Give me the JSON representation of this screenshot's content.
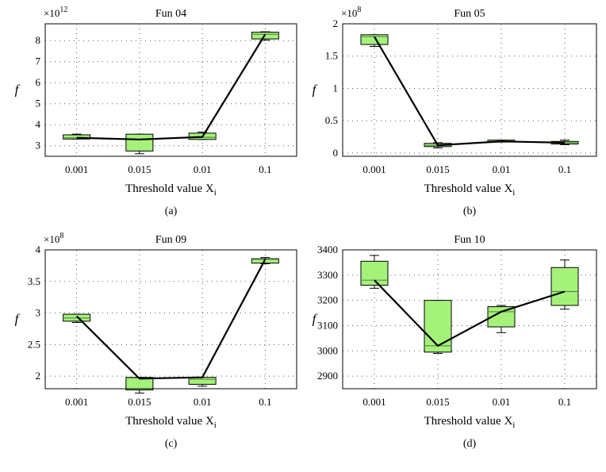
{
  "chart_data": [
    {
      "type": "box",
      "panel": "a",
      "title": "Fun 04",
      "xlabel": "Threshold value X",
      "xlabel_sub": "i",
      "ylabel": "f",
      "multiplier": "×10",
      "multiplier_exp": "12",
      "caption": "(a)",
      "categories": [
        "0.001",
        "0.015",
        "0.01",
        "0.1"
      ],
      "ylim": [
        2.5,
        8.8
      ],
      "yticks": [
        3,
        4,
        5,
        6,
        7,
        8
      ],
      "ytick_labels": [
        "3",
        "4",
        "5",
        "6",
        "7",
        "8"
      ],
      "boxes": [
        {
          "min": 3.32,
          "q1": 3.32,
          "median": 3.38,
          "q3": 3.52,
          "max": 3.55
        },
        {
          "min": 2.62,
          "q1": 2.75,
          "median": 3.3,
          "q3": 3.55,
          "max": 3.55
        },
        {
          "min": 3.3,
          "q1": 3.3,
          "median": 3.4,
          "q3": 3.6,
          "max": 3.65
        },
        {
          "min": 8.02,
          "q1": 8.08,
          "median": 8.3,
          "q3": 8.4,
          "max": 8.42
        }
      ],
      "line": [
        3.38,
        3.3,
        3.42,
        8.3
      ]
    },
    {
      "type": "box",
      "panel": "b",
      "title": "Fun 05",
      "xlabel": "Threshold value X",
      "xlabel_sub": "i",
      "ylabel": "f",
      "multiplier": "×10",
      "multiplier_exp": "8",
      "caption": "(b)",
      "categories": [
        "0.001",
        "0.015",
        "0.01",
        "0.1"
      ],
      "ylim": [
        -0.05,
        2.0
      ],
      "yticks": [
        0,
        0.5,
        1,
        1.5,
        2
      ],
      "ytick_labels": [
        "0",
        "0.5",
        "1",
        "1.5",
        "2"
      ],
      "boxes": [
        {
          "min": 1.65,
          "q1": 1.68,
          "median": 1.8,
          "q3": 1.83,
          "max": 1.83
        },
        {
          "min": 0.08,
          "q1": 0.1,
          "median": 0.12,
          "q3": 0.15,
          "max": 0.16
        },
        {
          "min": 0.17,
          "q1": 0.17,
          "median": 0.18,
          "q3": 0.2,
          "max": 0.2
        },
        {
          "min": 0.13,
          "q1": 0.14,
          "median": 0.16,
          "q3": 0.18,
          "max": 0.2
        }
      ],
      "line": [
        1.8,
        0.12,
        0.18,
        0.16
      ]
    },
    {
      "type": "box",
      "panel": "c",
      "title": "Fun 09",
      "xlabel": "Threshold value X",
      "xlabel_sub": "i",
      "ylabel": "f",
      "multiplier": "×10",
      "multiplier_exp": "8",
      "caption": "(c)",
      "categories": [
        "0.001",
        "0.015",
        "0.01",
        "0.1"
      ],
      "ylim": [
        1.8,
        4.0
      ],
      "yticks": [
        2,
        2.5,
        3,
        3.5,
        4
      ],
      "ytick_labels": [
        "2",
        "2.5",
        "3",
        "3.5",
        "4"
      ],
      "boxes": [
        {
          "min": 2.85,
          "q1": 2.87,
          "median": 2.92,
          "q3": 2.98,
          "max": 2.98
        },
        {
          "min": 1.73,
          "q1": 1.78,
          "median": 1.97,
          "q3": 1.98,
          "max": 1.98
        },
        {
          "min": 1.84,
          "q1": 1.87,
          "median": 1.95,
          "q3": 1.98,
          "max": 1.98
        },
        {
          "min": 3.78,
          "q1": 3.79,
          "median": 3.85,
          "q3": 3.86,
          "max": 3.88
        }
      ],
      "line": [
        2.95,
        1.96,
        1.98,
        3.85
      ]
    },
    {
      "type": "box",
      "panel": "d",
      "title": "Fun 10",
      "xlabel": "Threshold value X",
      "xlabel_sub": "i",
      "ylabel": "f",
      "multiplier": "",
      "multiplier_exp": "",
      "caption": "(d)",
      "categories": [
        "0.001",
        "0.015",
        "0.01",
        "0.1"
      ],
      "ylim": [
        2850,
        3400
      ],
      "yticks": [
        2900,
        3000,
        3100,
        3200,
        3300,
        3400
      ],
      "ytick_labels": [
        "2900",
        "3000",
        "3100",
        "3200",
        "3300",
        "3400"
      ],
      "boxes": [
        {
          "min": 3248,
          "q1": 3260,
          "median": 3280,
          "q3": 3355,
          "max": 3378
        },
        {
          "min": 2990,
          "q1": 2995,
          "median": 3020,
          "q3": 3200,
          "max": 3200
        },
        {
          "min": 3072,
          "q1": 3095,
          "median": 3155,
          "q3": 3175,
          "max": 3180
        },
        {
          "min": 3165,
          "q1": 3180,
          "median": 3235,
          "q3": 3330,
          "max": 3360
        }
      ],
      "line": [
        3280,
        3020,
        3155,
        3235
      ]
    }
  ]
}
